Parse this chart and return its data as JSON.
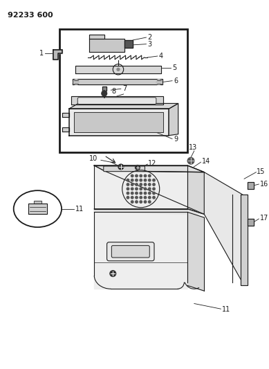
{
  "title": "92233 600",
  "bg_color": "#ffffff",
  "line_color": "#1a1a1a",
  "fig_width": 3.89,
  "fig_height": 5.33,
  "dpi": 100
}
